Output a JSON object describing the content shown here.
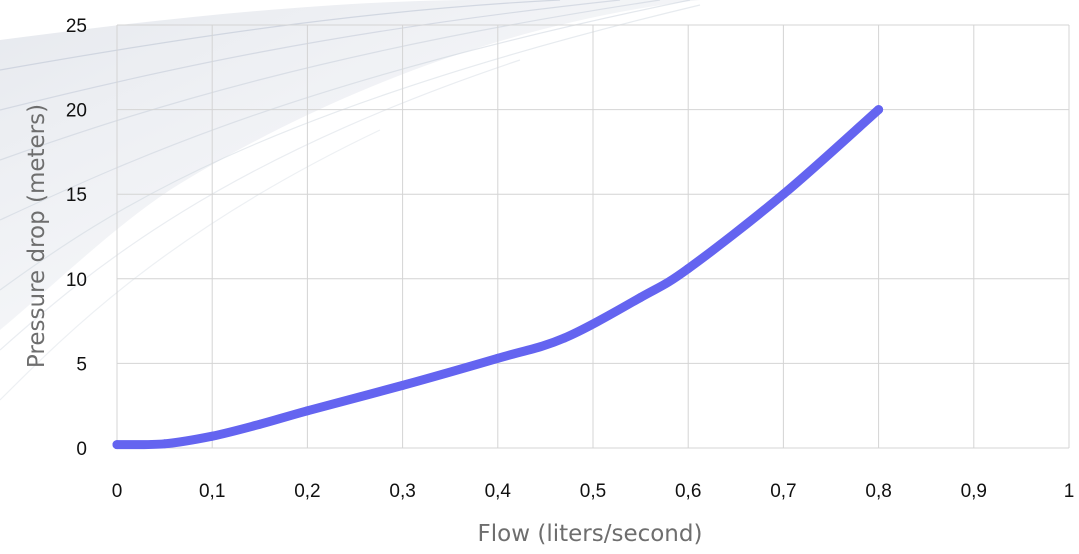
{
  "chart_data": {
    "type": "line",
    "xlabel": "Flow (liters/second)",
    "ylabel": "Pressure drop (meters)",
    "xlim": [
      0,
      1
    ],
    "ylim": [
      0,
      25
    ],
    "x_ticks": [
      "0",
      "0,1",
      "0,2",
      "0,3",
      "0,4",
      "0,5",
      "0,6",
      "0,7",
      "0,8",
      "0,9",
      "1"
    ],
    "y_ticks": [
      "0",
      "5",
      "10",
      "15",
      "20",
      "25"
    ],
    "grid": true,
    "legend": "none",
    "series": [
      {
        "color": "#6464f0",
        "points": [
          {
            "x": 0.0,
            "y": 0.2
          },
          {
            "x": 0.05,
            "y": 0.25
          },
          {
            "x": 0.1,
            "y": 0.7
          },
          {
            "x": 0.15,
            "y": 1.4
          },
          {
            "x": 0.2,
            "y": 2.2
          },
          {
            "x": 0.3,
            "y": 3.7
          },
          {
            "x": 0.4,
            "y": 5.3
          },
          {
            "x": 0.47,
            "y": 6.5
          },
          {
            "x": 0.55,
            "y": 8.9
          },
          {
            "x": 0.6,
            "y": 10.6
          },
          {
            "x": 0.7,
            "y": 15.0
          },
          {
            "x": 0.8,
            "y": 20.0
          }
        ]
      }
    ]
  }
}
